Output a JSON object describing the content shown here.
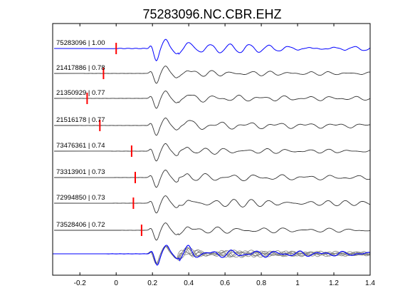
{
  "chart_data": {
    "type": "line",
    "title": "75283096.NC.CBR.EHZ",
    "xlabel": "",
    "ylabel": "",
    "xlim": [
      -0.35,
      1.4
    ],
    "xticks": [
      -0.2,
      0,
      0.2,
      0.4,
      0.6,
      0.8,
      1,
      1.2,
      1.4
    ],
    "xtick_labels": [
      "-0.2",
      "0",
      "0.2",
      "0.4",
      "0.6",
      "0.8",
      "1",
      "1.2",
      "1.4"
    ],
    "grid": false,
    "colors": {
      "reference_trace": "#0000ff",
      "other_traces": "#333333",
      "pick_marker": "#ff0000",
      "overlay_traces": "#808080"
    },
    "traces": [
      {
        "label": "75283096 | 1.00",
        "pick_time": 0.0,
        "reference": true
      },
      {
        "label": "21417886 | 0.78",
        "pick_time": -0.07
      },
      {
        "label": "21350929 | 0.77",
        "pick_time": -0.16
      },
      {
        "label": "21516178 | 0.77",
        "pick_time": -0.09
      },
      {
        "label": "73476361 | 0.74",
        "pick_time": 0.085
      },
      {
        "label": "73313901 | 0.73",
        "pick_time": 0.105
      },
      {
        "label": "72994850 | 0.73",
        "pick_time": 0.095
      },
      {
        "label": "73528406 | 0.72",
        "pick_time": 0.14
      }
    ],
    "overlay": "all traces superimposed (bottom row)"
  }
}
